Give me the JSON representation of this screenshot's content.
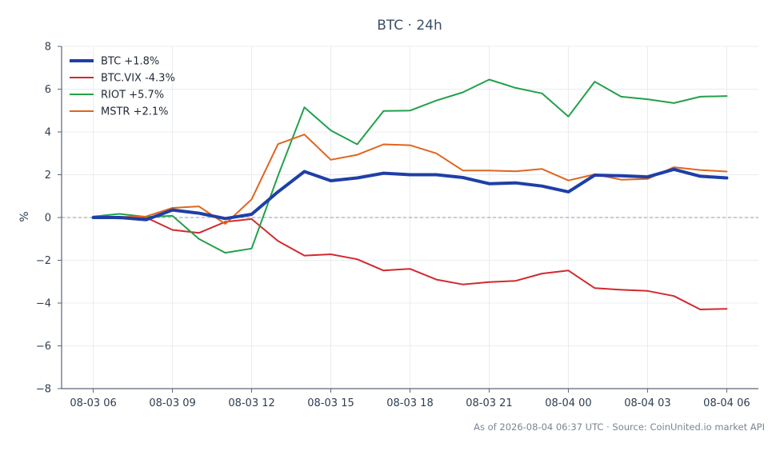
{
  "chart_data": {
    "type": "line",
    "title": "BTC · 24h",
    "xlabel": "",
    "ylabel": "%",
    "ylim": [
      -8,
      8
    ],
    "yticks": [
      -8,
      -6,
      -4,
      -2,
      0,
      2,
      4,
      6,
      8
    ],
    "ytick_labels": [
      "−8",
      "−6",
      "−4",
      "−2",
      "0",
      "2",
      "4",
      "6",
      "8"
    ],
    "xlim": [
      "2026-08-03 04:48",
      "2026-08-04 07:12"
    ],
    "xticks": [
      "08-03 06",
      "08-03 09",
      "08-03 12",
      "08-03 15",
      "08-03 18",
      "08-03 21",
      "08-04 00",
      "08-04 03",
      "08-04 06"
    ],
    "x": [
      "2026-08-03 06:00",
      "2026-08-03 07:00",
      "2026-08-03 08:00",
      "2026-08-03 09:00",
      "2026-08-03 10:00",
      "2026-08-03 11:00",
      "2026-08-03 12:00",
      "2026-08-03 13:00",
      "2026-08-03 14:00",
      "2026-08-03 15:00",
      "2026-08-03 16:00",
      "2026-08-03 17:00",
      "2026-08-03 18:00",
      "2026-08-03 19:00",
      "2026-08-03 20:00",
      "2026-08-03 21:00",
      "2026-08-03 22:00",
      "2026-08-03 23:00",
      "2026-08-04 00:00",
      "2026-08-04 01:00",
      "2026-08-04 02:00",
      "2026-08-04 03:00",
      "2026-08-04 04:00",
      "2026-08-04 05:00",
      "2026-08-04 06:00"
    ],
    "series": [
      {
        "name": "BTC +1.8%",
        "color": "#1f3fa6",
        "emphasis": true,
        "values": [
          0.0,
          0.0,
          -0.1,
          0.35,
          0.2,
          -0.05,
          0.15,
          1.2,
          2.15,
          1.72,
          1.85,
          2.07,
          2.0,
          2.0,
          1.87,
          1.58,
          1.62,
          1.47,
          1.2,
          1.98,
          1.95,
          1.9,
          2.25,
          1.93,
          1.85
        ]
      },
      {
        "name": "BTC.VIX -4.3%",
        "color": "#d2292d",
        "emphasis": false,
        "values": [
          0.0,
          -0.05,
          0.0,
          -0.58,
          -0.72,
          -0.2,
          -0.07,
          -1.1,
          -1.78,
          -1.72,
          -1.95,
          -2.48,
          -2.4,
          -2.9,
          -3.13,
          -3.02,
          -2.96,
          -2.62,
          -2.48,
          -3.3,
          -3.38,
          -3.43,
          -3.67,
          -4.3,
          -4.27
        ]
      },
      {
        "name": "RIOT +5.7%",
        "color": "#22a04a",
        "emphasis": false,
        "values": [
          0.05,
          0.17,
          0.03,
          0.08,
          -1.0,
          -1.65,
          -1.45,
          1.95,
          5.15,
          4.07,
          3.42,
          4.98,
          5.0,
          5.47,
          5.85,
          6.45,
          6.06,
          5.8,
          4.72,
          6.35,
          5.65,
          5.53,
          5.35,
          5.65,
          5.68
        ]
      },
      {
        "name": "MSTR +2.1%",
        "color": "#e0651e",
        "emphasis": false,
        "values": [
          0.02,
          0.03,
          0.05,
          0.45,
          0.52,
          -0.3,
          0.85,
          3.43,
          3.88,
          2.7,
          2.93,
          3.42,
          3.38,
          3.0,
          2.2,
          2.2,
          2.16,
          2.27,
          1.73,
          2.02,
          1.77,
          1.8,
          2.35,
          2.22,
          2.15
        ]
      }
    ],
    "zero_line": true,
    "grid": true,
    "legend_position": "top-left"
  },
  "footnote": "As of 2026-08-04 06:37 UTC · Source: CoinUnited.io market API"
}
